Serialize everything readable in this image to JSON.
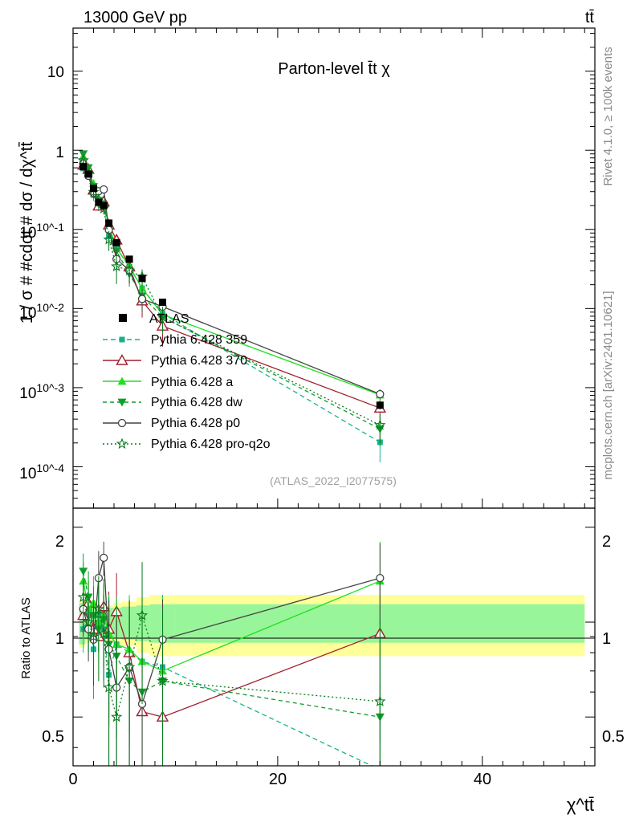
{
  "header": {
    "energy_label": "13000 GeV pp",
    "process_label": "tt̄"
  },
  "side_labels": {
    "rivet": "Rivet 4.1.0, ≥ 100k events",
    "mcplots": "mcplots.cern.ch [arXiv:2401.10621]"
  },
  "chart_data": {
    "type": "line",
    "title": "Parton-level t̄t χ",
    "analysis_id": "(ATLAS_2022_I2077575)",
    "xlabel": "χ^tt̄",
    "ylabel": "1 / σ # #cdot # dσ / dχ^tt̄",
    "ratio_ylabel": "Ratio to ATLAS",
    "xlim": [
      0,
      51
    ],
    "ylim_main": [
      3e-05,
      35
    ],
    "ylim_ratio": [
      0.35,
      2.3
    ],
    "x_ticks": [
      "0",
      "20",
      "40"
    ],
    "y_ticks_main": [
      "10^-4",
      "10^-3",
      "10^-2",
      "10^-1",
      "1",
      "10"
    ],
    "y_ticks_ratio": [
      "0.5",
      "1",
      "2"
    ],
    "x": [
      1.0,
      1.5,
      2.0,
      2.5,
      3.0,
      3.5,
      4.25,
      5.5,
      6.75,
      8.75,
      30.0
    ],
    "bin_edges": [
      0.6,
      1.2,
      1.8,
      2.25,
      2.75,
      3.25,
      3.9,
      4.75,
      6.2,
      7.5,
      10.0,
      50.0
    ],
    "data": {
      "name": "ATLAS",
      "values": [
        0.62,
        0.5,
        0.33,
        0.22,
        0.2,
        0.12,
        0.068,
        0.042,
        0.024,
        0.012,
        0.0006
      ],
      "errors": [
        0.05,
        0.04,
        0.03,
        0.02,
        0.02,
        0.012,
        0.006,
        0.004,
        0.002,
        0.0012,
        7e-05
      ]
    },
    "ratio_band": {
      "inner": [
        0.15,
        0.12,
        0.11,
        0.11,
        0.11,
        0.11,
        0.11,
        0.12,
        0.13,
        0.14,
        0.14
      ],
      "outer": [
        0.17,
        0.14,
        0.13,
        0.13,
        0.13,
        0.13,
        0.15,
        0.16,
        0.2,
        0.22,
        0.22
      ]
    },
    "series": [
      {
        "name": "Pythia 6.428 359",
        "color": "#17b28c",
        "dash": "6,4",
        "marker": "square",
        "ratio": [
          0.95,
          1.05,
          0.82,
          1.05,
          0.95,
          0.68,
          0.85,
          0.8,
          0.75,
          0.72,
          0.34
        ],
        "ratio_err": [
          0.15,
          0.2,
          0.25,
          0.25,
          0.3,
          0.35,
          0.35,
          0.4,
          0.45,
          0.5,
          0.3
        ]
      },
      {
        "name": "Pythia 6.428 370",
        "color": "#a01f2e",
        "dash": "",
        "marker": "triangle-open",
        "ratio": [
          1.05,
          1.15,
          0.95,
          0.9,
          1.12,
          0.95,
          1.08,
          0.8,
          0.52,
          0.5,
          0.92
        ],
        "ratio_err": [
          0.15,
          0.2,
          0.2,
          0.25,
          0.25,
          0.3,
          0.35,
          0.35,
          0.4,
          0.45,
          0.5
        ]
      },
      {
        "name": "Pythia 6.428 a",
        "color": "#1ee01e",
        "dash": "",
        "marker": "triangle",
        "ratio": [
          1.35,
          1.1,
          1.15,
          1.0,
          1.05,
          0.92,
          0.85,
          0.82,
          0.75,
          0.7,
          1.35
        ],
        "ratio_err": [
          0.2,
          0.2,
          0.25,
          0.25,
          0.3,
          0.3,
          0.35,
          0.4,
          0.45,
          0.5,
          0.45
        ]
      },
      {
        "name": "Pythia 6.428 dw",
        "color": "#0e9e2a",
        "dash": "5,4",
        "marker": "triangle-down",
        "ratio": [
          1.45,
          1.2,
          1.05,
          0.95,
          1.02,
          0.85,
          0.78,
          0.65,
          0.6,
          0.65,
          0.5
        ],
        "ratio_err": [
          0.2,
          0.25,
          0.25,
          0.3,
          0.3,
          0.35,
          0.35,
          0.4,
          0.45,
          0.5,
          0.4
        ]
      },
      {
        "name": "Pythia 6.428 p0",
        "color": "#444444",
        "dash": "",
        "marker": "circle-open",
        "ratio": [
          1.1,
          0.95,
          0.88,
          1.38,
          1.6,
          0.82,
          0.62,
          0.72,
          0.55,
          0.88,
          1.38
        ],
        "ratio_err": [
          0.15,
          0.2,
          0.25,
          0.3,
          0.2,
          0.35,
          0.4,
          0.45,
          0.35,
          0.3,
          0.4
        ]
      },
      {
        "name": "Pythia 6.428 pro-q2o",
        "color": "#0a7a1e",
        "dash": "2,3",
        "marker": "star",
        "ratio": [
          1.2,
          1.0,
          0.9,
          1.1,
          0.92,
          0.62,
          0.5,
          0.72,
          1.05,
          0.65,
          0.56
        ],
        "ratio_err": [
          0.15,
          0.2,
          0.25,
          0.3,
          0.3,
          0.35,
          0.4,
          0.45,
          0.5,
          0.45,
          0.45
        ]
      }
    ]
  }
}
